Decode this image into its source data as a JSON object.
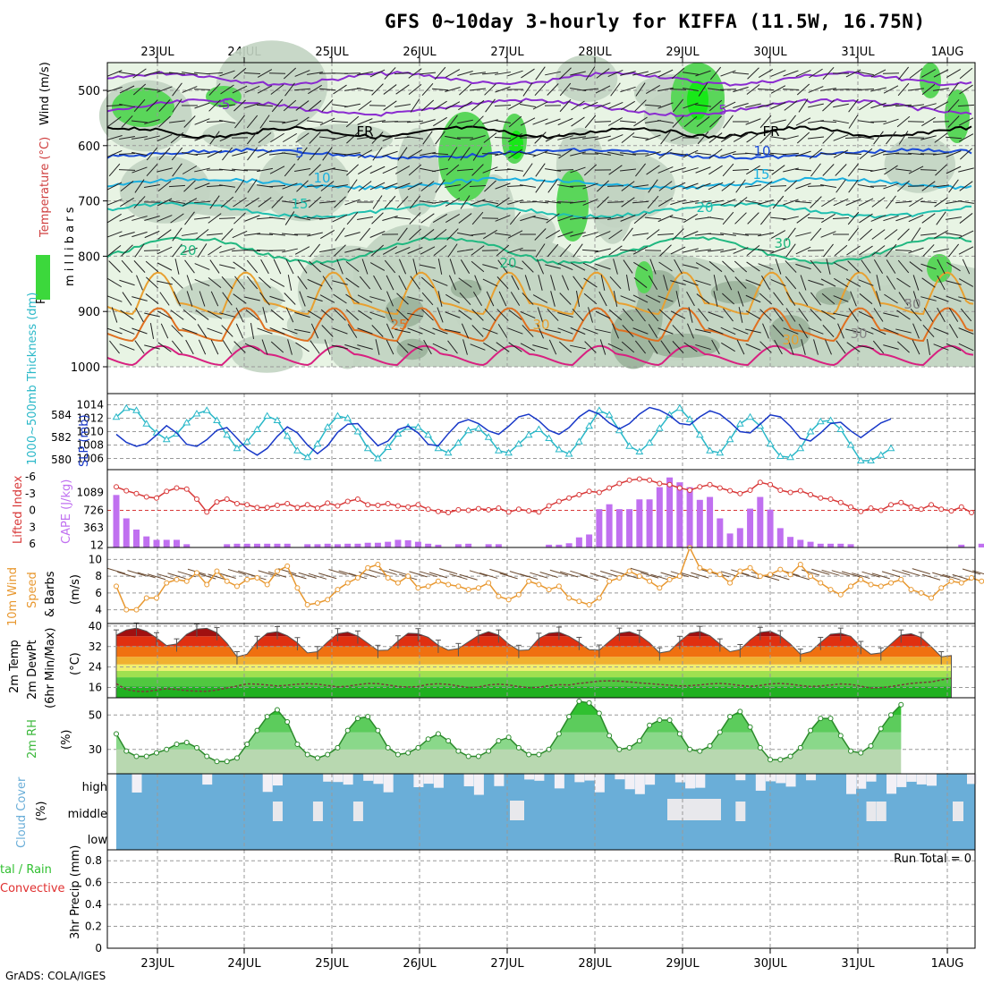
{
  "title": "GFS 0~10day 3-hourly for KIFFA (11.5W, 16.75N)",
  "credit": "GrADS: COLA/IGES",
  "colors": {
    "rh_light": "#e8f4e4",
    "rh_mid": "#c2d4c2",
    "rh_dark": "#9fb69f",
    "rh_wet": "#5ad65a",
    "rh_sat": "#18e818",
    "thickness": "#2ab8c8",
    "slp": "#1838c8",
    "lifted_index": "#d83838",
    "cape": "#c070f0",
    "wind_speed": "#e89830",
    "cloud": "#6aaed8",
    "rh2m": "#3cb83c"
  },
  "days": [
    "23JUL",
    "24JUL",
    "25JUL",
    "26JUL",
    "27JUL",
    "28JUL",
    "29JUL",
    "30JUL",
    "31JUL",
    "1AUG"
  ],
  "panels": {
    "upper": {
      "ylabel_rh": "RH (%)",
      "ylabel_temp": "Temperature (°C)",
      "ylabel_wind": "Wind (m/s)",
      "ylabel_mb": "m i l l i b a r s",
      "yticks": [
        "500",
        "600",
        "700",
        "800",
        "900",
        "1000"
      ],
      "labels": [
        "-5",
        "5",
        "FR",
        "FR",
        "5",
        "10",
        "10",
        "15",
        "15",
        "20",
        "20",
        "20",
        "30",
        "25",
        "30",
        "30",
        "30",
        "30",
        "50"
      ]
    },
    "slp": {
      "ylabel_left": "1000~500mb Thickness (dm)",
      "ylabel_right": "SLP (mb)",
      "left_ticks": [
        "584",
        "582",
        "580"
      ],
      "right_ticks": [
        "1014",
        "1012",
        "1010",
        "1008",
        "1006"
      ]
    },
    "cape": {
      "ylabel_left": "Lifted Index",
      "ylabel_right": "CAPE (J/kg)",
      "left_ticks": [
        "-6",
        "-3",
        "0",
        "3",
        "6"
      ],
      "right_ticks": [
        "1089",
        "726",
        "363",
        "12"
      ]
    },
    "wind": {
      "ylabel_a": "10m Wind",
      "ylabel_b": "Speed",
      "ylabel_c": "& Barbs",
      "unit": "(m/s)",
      "yticks": [
        "10",
        "8",
        "6",
        "4"
      ]
    },
    "temp": {
      "ylabel_a": "2m Temp",
      "ylabel_b": "2m DewPt",
      "ylabel_c": "(6hr Min/Max)",
      "unit": "(°C)",
      "yticks": [
        "40",
        "32",
        "24",
        "16"
      ]
    },
    "rh2m": {
      "ylabel": "2m RH",
      "unit": "(%)",
      "yticks": [
        "50",
        "30"
      ]
    },
    "cloud": {
      "ylabel": "Cloud Cover",
      "unit": "(%)",
      "levels": [
        "high",
        "middle",
        "low"
      ]
    },
    "precip": {
      "ylabel_a": "tal / Rain",
      "ylabel_b": "Convective",
      "ylabel_c": "3hr Precip (mm)",
      "yticks": [
        "0.8",
        "0.6",
        "0.4",
        "0.2",
        "0"
      ],
      "run_total": "Run Total = 0"
    }
  },
  "chart_data": [
    {
      "type": "line",
      "name": "1000~500mb Thickness (dm) / SLP (mb)",
      "ylim_thickness": [
        579.5,
        585.5
      ],
      "ylim_slp": [
        1005,
        1015
      ],
      "series": [
        {
          "name": "Thickness",
          "values": [
            583.8,
            584.6,
            584.4,
            583.2,
            582.4,
            581.8,
            582.3,
            583.3,
            584.1,
            584.4,
            583.5,
            582.2,
            581.0,
            581.6,
            582.7,
            583.9,
            583.5,
            582.1,
            580.8,
            580.2,
            581.4,
            582.9,
            583.9,
            583.7,
            582.5,
            581.0,
            580.1,
            581.1,
            582.3,
            582.9,
            582.9,
            582.2,
            581.0,
            580.6,
            581.5,
            582.6,
            582.8,
            582.0,
            580.8,
            580.6,
            581.4,
            582.2,
            582.7,
            581.9,
            580.9,
            580.5,
            581.6,
            583.0,
            584.4,
            584.0,
            582.6,
            581.2,
            580.7,
            581.5,
            582.8,
            584.0,
            584.6,
            583.6,
            582.2,
            580.8,
            580.6,
            581.8,
            583.2,
            583.8,
            583.0,
            581.4,
            580.3,
            580.2,
            581.0,
            582.5,
            583.4,
            583.5,
            582.7,
            581.3,
            579.9,
            579.9,
            580.4,
            581.0
          ]
        },
        {
          "name": "SLP",
          "values": [
            1009.6,
            1008.4,
            1007.8,
            1008.2,
            1009.5,
            1010.9,
            1009.8,
            1008.1,
            1007.8,
            1008.8,
            1010.2,
            1010.6,
            1009.0,
            1007.4,
            1006.5,
            1007.5,
            1009.3,
            1010.7,
            1009.8,
            1008.0,
            1006.7,
            1007.9,
            1009.9,
            1011.1,
            1011.2,
            1009.5,
            1007.9,
            1008.6,
            1010.3,
            1010.8,
            1009.8,
            1008.1,
            1007.9,
            1009.7,
            1011.3,
            1011.8,
            1011.2,
            1010.1,
            1009.6,
            1010.8,
            1012.2,
            1012.6,
            1011.6,
            1010.2,
            1009.6,
            1010.6,
            1012.2,
            1013.2,
            1012.6,
            1011.3,
            1010.4,
            1011.2,
            1012.6,
            1013.6,
            1013.2,
            1012.4,
            1011.2,
            1011.0,
            1012.2,
            1013.1,
            1012.6,
            1011.4,
            1010.0,
            1009.8,
            1011.1,
            1012.5,
            1012.2,
            1010.8,
            1009.0,
            1008.6,
            1009.8,
            1011.2,
            1011.4,
            1010.1,
            1009.1,
            1010.2,
            1011.3,
            1011.9
          ]
        }
      ]
    },
    {
      "type": "bar",
      "name": "Lifted Index / CAPE (J/kg)",
      "ylim_li": [
        6,
        -6
      ],
      "ylim_cape": [
        12,
        1450
      ],
      "series": [
        {
          "name": "CAPE",
          "values": [
            1040,
            560,
            330,
            190,
            120,
            120,
            120,
            30,
            0,
            0,
            0,
            30,
            40,
            40,
            40,
            40,
            40,
            40,
            0,
            30,
            30,
            40,
            30,
            40,
            40,
            60,
            60,
            80,
            120,
            110,
            80,
            40,
            20,
            0,
            30,
            40,
            0,
            30,
            30,
            0,
            0,
            0,
            0,
            20,
            20,
            50,
            170,
            230,
            750,
            850,
            750,
            750,
            950,
            950,
            1200,
            1400,
            1300,
            1200,
            940,
            1000,
            560,
            250,
            360,
            760,
            1000,
            740,
            360,
            180,
            120,
            80,
            40,
            40,
            40,
            30,
            0,
            0,
            0,
            0,
            0,
            0,
            0,
            0,
            0,
            0,
            20,
            0,
            40,
            40
          ]
        },
        {
          "name": "Lifted Index",
          "values": [
            -4.2,
            -3.5,
            -3.0,
            -2.4,
            -2.2,
            -3.4,
            -4.0,
            -3.8,
            -2.0,
            0.3,
            -1.5,
            -2.0,
            -1.2,
            -1.0,
            -0.5,
            -0.5,
            -0.9,
            -1.2,
            -0.5,
            -1.0,
            -0.4,
            -1.3,
            -0.8,
            -1.6,
            -2.0,
            -1.0,
            -0.9,
            -1.2,
            -0.8,
            -0.6,
            -1.0,
            -0.2,
            0.2,
            0.4,
            -0.1,
            0.0,
            -0.3,
            -0.1,
            -0.4,
            0.3,
            -0.2,
            0.1,
            0.3,
            -0.8,
            -1.6,
            -2.2,
            -2.8,
            -3.4,
            -3.2,
            -4.0,
            -4.8,
            -5.4,
            -5.6,
            -5.4,
            -4.8,
            -4.6,
            -4.0,
            -3.6,
            -4.2,
            -4.6,
            -4.0,
            -3.5,
            -3.0,
            -3.6,
            -5.0,
            -4.6,
            -3.6,
            -3.2,
            -3.5,
            -2.8,
            -2.2,
            -2.0,
            -1.4,
            -0.6,
            0.2,
            -0.4,
            0.0,
            -1.0,
            -1.4,
            -0.6,
            -0.2,
            -1.0,
            -0.2,
            0.1,
            -0.6,
            0.4
          ]
        }
      ]
    },
    {
      "type": "line",
      "name": "10m Wind Speed (m/s)",
      "ylim": [
        3,
        11
      ],
      "series": [
        {
          "name": "Wind Speed",
          "values": [
            6.8,
            4.0,
            4.0,
            5.4,
            5.4,
            7.2,
            7.6,
            7.4,
            8.4,
            7.0,
            8.6,
            7.4,
            6.8,
            7.6,
            7.8,
            7.0,
            8.6,
            9.2,
            6.6,
            4.6,
            4.8,
            5.2,
            6.4,
            7.2,
            7.8,
            9.0,
            9.4,
            7.8,
            7.2,
            8.0,
            6.6,
            6.8,
            7.4,
            7.0,
            6.8,
            6.4,
            6.6,
            7.2,
            5.6,
            5.2,
            5.8,
            7.4,
            7.0,
            6.4,
            6.8,
            5.4,
            5.0,
            4.6,
            5.4,
            7.4,
            7.8,
            8.6,
            8.0,
            7.4,
            6.6,
            7.6,
            8.0,
            11.4,
            9.0,
            8.6,
            8.2,
            7.2,
            8.6,
            9.0,
            8.0,
            8.2,
            8.8,
            8.2,
            9.4,
            8.0,
            7.2,
            6.4,
            5.8,
            6.8,
            7.6,
            7.0,
            6.8,
            7.2,
            7.6,
            6.4,
            6.0,
            5.4,
            6.6,
            7.4,
            7.2,
            7.8,
            7.4
          ]
        }
      ]
    },
    {
      "type": "area",
      "name": "2m Temp / DewPt (°C)",
      "ylim": [
        12,
        41
      ],
      "series": [
        {
          "name": "Temp",
          "values": [
            36.5,
            38.5,
            39.2,
            38.0,
            35.4,
            32.4,
            33.0,
            36.8,
            38.8,
            39.1,
            37.4,
            33.3,
            28.0,
            29.0,
            34.0,
            37.2,
            37.8,
            36.2,
            33.5,
            29.5,
            30.0,
            33.8,
            37.0,
            37.6,
            36.1,
            33.3,
            30.5,
            30.6,
            34.2,
            37.2,
            37.0,
            35.6,
            32.5,
            30.6,
            31.2,
            33.8,
            36.4,
            37.8,
            36.5,
            33.0,
            30.5,
            30.7,
            35.2,
            37.2,
            37.6,
            36.0,
            33.6,
            30.8,
            30.6,
            34.0,
            37.2,
            37.8,
            36.4,
            33.5,
            29.5,
            30.2,
            34.0,
            37.2,
            37.9,
            36.2,
            33.0,
            30.0,
            30.8,
            34.6,
            37.5,
            38.0,
            36.2,
            33.0,
            29.0,
            30.0,
            33.6,
            36.8,
            37.2,
            36.0,
            32.0,
            29.0,
            29.5,
            33.0,
            36.5,
            37.0,
            35.5,
            32.0,
            28.0,
            28.5
          ]
        },
        {
          "name": "DewPt",
          "values": [
            17.5,
            15.2,
            14.5,
            14.4,
            15.0,
            15.5,
            15.2,
            14.8,
            14.6,
            14.5,
            15.0,
            15.8,
            16.6,
            17.4,
            17.3,
            17.0,
            16.6,
            16.9,
            17.3,
            17.5,
            17.3,
            16.8,
            16.3,
            16.5,
            17.1,
            17.6,
            17.5,
            17.0,
            16.4,
            16.2,
            16.4,
            17.2,
            17.5,
            17.2,
            16.6,
            16.0,
            16.2,
            17.0,
            17.3,
            17.0,
            16.4,
            15.9,
            16.1,
            16.7,
            17.1,
            17.0,
            17.6,
            18.0,
            18.5,
            18.6,
            18.5,
            18.2,
            17.8,
            17.5,
            17.2,
            16.9,
            16.6,
            16.7,
            17.0,
            17.4,
            17.6,
            17.3,
            16.8,
            16.5,
            16.8,
            17.4,
            17.6,
            17.3,
            16.8,
            16.4,
            16.6,
            17.0,
            17.4,
            17.2,
            16.5,
            15.8,
            15.9,
            16.4,
            17.0,
            17.6,
            17.9,
            18.2,
            19.0,
            19.6
          ]
        }
      ]
    },
    {
      "type": "area",
      "name": "2m RH (%)",
      "ylim": [
        20,
        60
      ],
      "series": [
        {
          "name": "2m RH",
          "values": [
            39,
            29,
            26,
            26,
            28,
            30,
            33,
            34,
            31,
            26,
            23,
            23,
            25,
            33,
            41,
            49,
            53,
            46,
            33,
            27,
            25,
            27,
            31,
            41,
            48,
            49,
            41,
            31,
            27,
            28,
            31,
            36,
            39,
            35,
            29,
            26,
            26,
            29,
            35,
            37,
            31,
            27,
            27,
            30,
            39,
            49,
            58,
            57,
            51,
            38,
            30,
            31,
            35,
            44,
            47,
            47,
            39,
            30,
            29,
            32,
            40,
            49,
            52,
            43,
            31,
            24,
            24,
            26,
            31,
            41,
            48,
            48,
            38,
            29,
            28,
            32,
            42,
            50,
            56
          ]
        }
      ]
    },
    {
      "type": "heatmap",
      "name": "Cloud Cover (%)",
      "levels": [
        "high",
        "middle",
        "low"
      ]
    },
    {
      "type": "bar",
      "name": "3hr Precip (mm)",
      "ylim": [
        0,
        0.9
      ],
      "series": [
        {
          "name": "Precip",
          "values": [
            0
          ]
        }
      ]
    }
  ]
}
